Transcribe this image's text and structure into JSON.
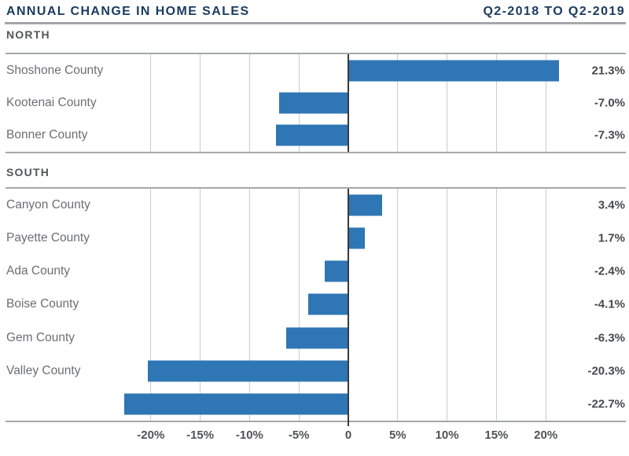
{
  "header": {
    "title": "ANNUAL CHANGE IN HOME SALES",
    "period": "Q2-2018 TO Q2-2019"
  },
  "chart_data": [
    {
      "type": "bar",
      "orientation": "horizontal",
      "title": "NORTH",
      "categories": [
        "Shoshone County",
        "Kootenai County",
        "Bonner County"
      ],
      "values": [
        21.3,
        -7.0,
        -7.3
      ],
      "value_labels": [
        "21.3%",
        "-7.0%",
        "-7.3%"
      ],
      "xlabel": "",
      "ylabel": "",
      "xlim": [
        -25,
        28
      ],
      "grid": true,
      "legend": false
    },
    {
      "type": "bar",
      "orientation": "horizontal",
      "title": "SOUTH",
      "categories": [
        "Canyon County",
        "Payette County",
        "Ada County",
        "Boise County",
        "Gem County",
        "Valley County",
        ""
      ],
      "values": [
        3.4,
        1.7,
        -2.4,
        -4.1,
        -6.3,
        -20.3,
        -22.7
      ],
      "value_labels": [
        "3.4%",
        "1.7%",
        "-2.4%",
        "-4.1%",
        "-6.3%",
        "-20.3%",
        "-22.7%"
      ],
      "xlabel": "",
      "ylabel": "",
      "xlim": [
        -25,
        28
      ],
      "grid": true,
      "legend": false
    }
  ],
  "axis": {
    "ticks": [
      -20,
      -15,
      -10,
      -5,
      0,
      5,
      10,
      15,
      20
    ],
    "tick_labels": [
      "-20%",
      "-15%",
      "-10%",
      "-5%",
      "0",
      "5%",
      "10%",
      "15%",
      "20%"
    ]
  },
  "colors": {
    "bar": "#2F76B5",
    "title": "#1B3C60",
    "section_label": "#55565A",
    "category_label": "#6D6E71",
    "value_label": "#48494B",
    "gridline": "#CBCCCE",
    "zero_line": "#3A3A3C",
    "rule": "#A5A7AA"
  }
}
